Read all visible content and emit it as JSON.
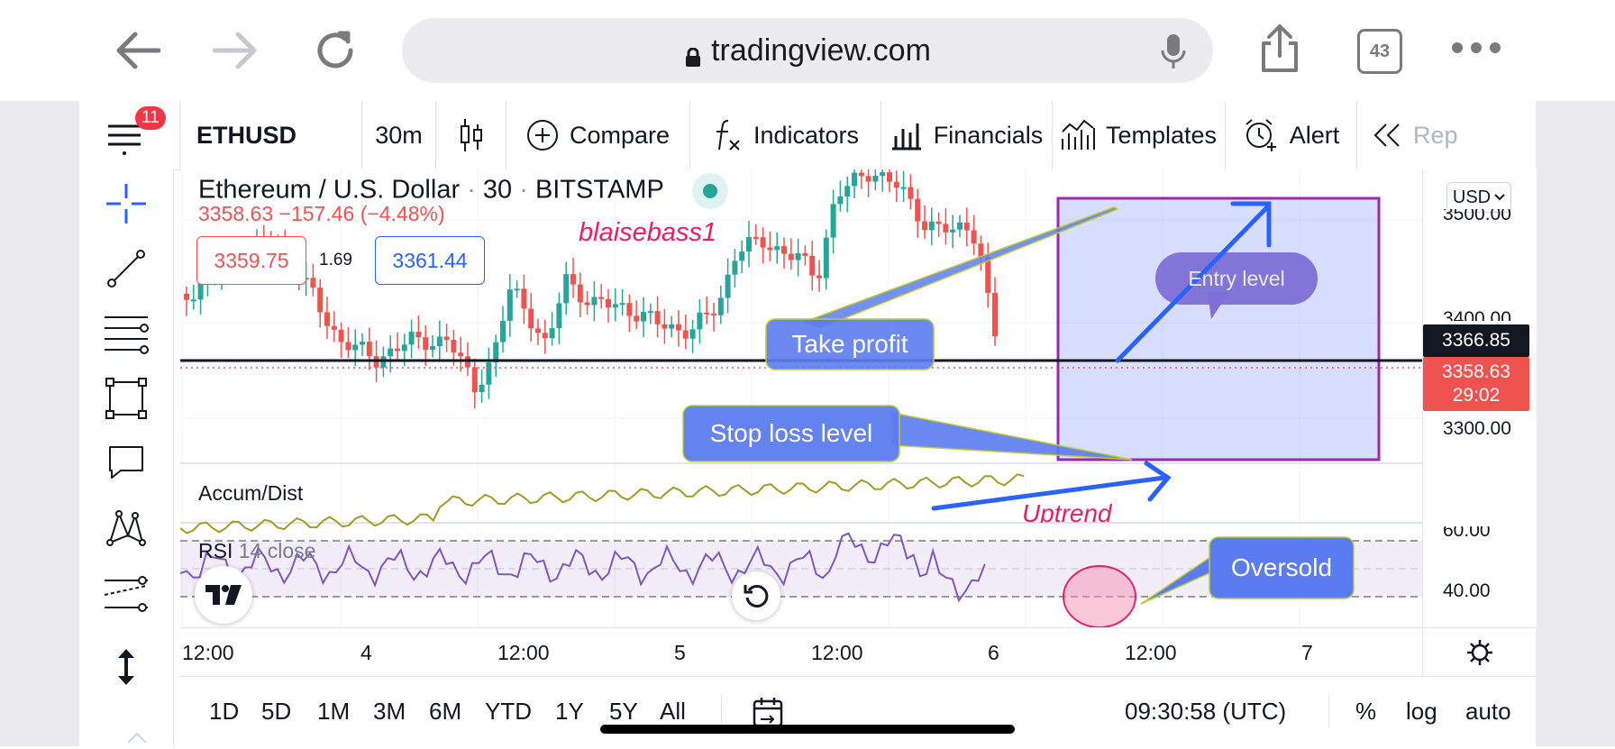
{
  "browser": {
    "url": "tradingview.com",
    "tab_count": "43"
  },
  "toolbar": {
    "notification_count": "11",
    "symbol": "ETHUSD",
    "interval": "30m",
    "compare_label": "Compare",
    "indicators_label": "Indicators",
    "financials_label": "Financials",
    "templates_label": "Templates",
    "alert_label": "Alert",
    "replay_label": "Rep"
  },
  "legend": {
    "title": "Ethereum / U.S. Dollar",
    "interval": "30",
    "exchange": "BITSTAMP",
    "price": "3358.63",
    "change": "−157.46 (−4.48%)",
    "sell_price": "3359.75",
    "spread": "1.69",
    "buy_price": "3361.44"
  },
  "annotations": {
    "author": "blaisebass1",
    "take_profit": "Take profit",
    "entry_level": "Entry level",
    "stop_loss": "Stop loss level",
    "uptrend": "Uptrend",
    "oversold": "Oversold"
  },
  "indicators": {
    "accum_dist": "Accum/Dist",
    "rsi": "RSI",
    "rsi_params": "14 close"
  },
  "price_axis": {
    "currency": "USD",
    "labels": [
      "3500.00",
      "3400.00",
      "3300.00"
    ],
    "rsi_labels": [
      "60.00",
      "40.00"
    ],
    "crosshair_price": "3366.85",
    "last_price": "3358.63",
    "countdown": "29:02"
  },
  "time_axis": {
    "labels": [
      "12:00",
      "4",
      "12:00",
      "5",
      "12:00",
      "6",
      "12:00",
      "7"
    ]
  },
  "range_bar": {
    "ranges": [
      "1D",
      "5D",
      "1M",
      "3M",
      "6M",
      "YTD",
      "1Y",
      "5Y",
      "All"
    ],
    "clock": "09:30:58 (UTC)",
    "percent": "%",
    "log": "log",
    "auto": "auto"
  },
  "colors": {
    "up": "#26a69a",
    "down": "#ef5350",
    "accent": "#2962ff",
    "annotation": "#5b7cf0"
  }
}
